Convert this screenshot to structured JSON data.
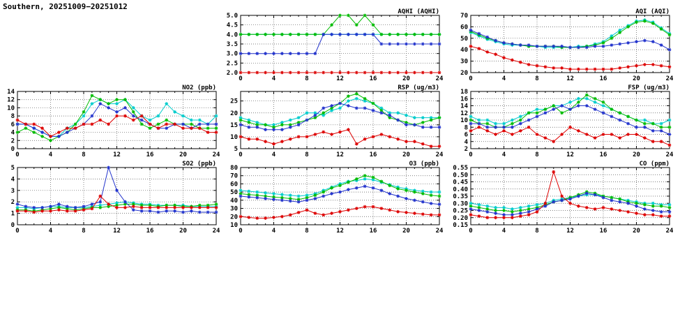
{
  "page_title": "Southern, 20251009−20251012",
  "colors": {
    "red": "#dd0000",
    "blue": "#2233cc",
    "green": "#00bb00",
    "cyan": "#00cccc"
  },
  "chart_data": [
    {
      "id": "aqhi",
      "type": "line",
      "title": "AQHI (AQHI)",
      "grid": {
        "col": 2,
        "row": 1
      },
      "xlim": [
        0,
        24
      ],
      "xticks": [
        0,
        4,
        8,
        12,
        16,
        20,
        24
      ],
      "ylim": [
        2,
        5
      ],
      "yticks": [
        2,
        2.5,
        3,
        3.5,
        4,
        4.5,
        5
      ],
      "ydecimals": 1,
      "series": [
        {
          "color": "cyan",
          "values": [
            4,
            4,
            4,
            4,
            4,
            4,
            4,
            4,
            4,
            4,
            4,
            4,
            4,
            4,
            4,
            4,
            4,
            4,
            4,
            4,
            4,
            4,
            4,
            4,
            4
          ]
        },
        {
          "color": "green",
          "values": [
            4,
            4,
            4,
            4,
            4,
            4,
            4,
            4,
            4,
            4,
            4,
            4.5,
            5,
            5,
            4.5,
            5,
            4.5,
            4,
            4,
            4,
            4,
            4,
            4,
            4,
            4
          ]
        },
        {
          "color": "blue",
          "values": [
            3,
            3,
            3,
            3,
            3,
            3,
            3,
            3,
            3,
            3,
            4,
            4,
            4,
            4,
            4,
            4,
            4,
            3.5,
            3.5,
            3.5,
            3.5,
            3.5,
            3.5,
            3.5,
            3.5
          ]
        },
        {
          "color": "red",
          "values": [
            2,
            2,
            2,
            2,
            2,
            2,
            2,
            2,
            2,
            2,
            2,
            2,
            2,
            2,
            2,
            2,
            2,
            2,
            2,
            2,
            2,
            2,
            2,
            2,
            2
          ]
        }
      ]
    },
    {
      "id": "aqi",
      "type": "line",
      "title": "AQI (AQI)",
      "grid": {
        "col": 3,
        "row": 1
      },
      "xlim": [
        0,
        24
      ],
      "xticks": [
        0,
        4,
        8,
        12,
        16,
        20,
        24
      ],
      "ylim": [
        20,
        70
      ],
      "yticks": [
        20,
        30,
        40,
        50,
        60,
        70
      ],
      "ydecimals": 0,
      "series": [
        {
          "color": "cyan",
          "values": [
            55,
            52,
            49,
            47,
            45,
            44,
            44,
            43,
            43,
            42,
            42,
            42,
            42,
            43,
            43,
            45,
            47,
            52,
            57,
            61,
            65,
            66,
            64,
            59,
            54
          ]
        },
        {
          "color": "green",
          "values": [
            56,
            53,
            50,
            48,
            46,
            45,
            44,
            43,
            43,
            43,
            43,
            42,
            42,
            42,
            43,
            44,
            46,
            50,
            55,
            60,
            64,
            65,
            63,
            58,
            53
          ]
        },
        {
          "color": "blue",
          "values": [
            57,
            54,
            51,
            48,
            46,
            45,
            44,
            44,
            43,
            43,
            43,
            43,
            42,
            42,
            42,
            43,
            43,
            44,
            45,
            46,
            47,
            48,
            47,
            44,
            40
          ]
        },
        {
          "color": "red",
          "values": [
            43,
            41,
            38,
            36,
            33,
            31,
            29,
            27,
            26,
            25,
            24,
            24,
            23,
            23,
            23,
            23,
            23,
            23,
            24,
            25,
            26,
            27,
            27,
            26,
            25
          ]
        }
      ]
    },
    {
      "id": "no2",
      "type": "line",
      "title": "NO2 (ppb)",
      "grid": {
        "col": 1,
        "row": 2
      },
      "xlim": [
        0,
        24
      ],
      "xticks": [
        0,
        4,
        8,
        12,
        16,
        20,
        24
      ],
      "ylim": [
        0,
        14
      ],
      "yticks": [
        0,
        2,
        4,
        6,
        8,
        10,
        12,
        14
      ],
      "ydecimals": 0,
      "series": [
        {
          "color": "cyan",
          "values": [
            6,
            6,
            5,
            4,
            3,
            3,
            5,
            6,
            8,
            11,
            12,
            11,
            11,
            12,
            10,
            8,
            7,
            8,
            11,
            9,
            8,
            7,
            7,
            6,
            8
          ]
        },
        {
          "color": "green",
          "values": [
            4,
            5,
            4,
            3,
            2,
            3,
            4,
            6,
            9,
            13,
            12,
            11,
            12,
            12,
            9,
            6,
            5,
            6,
            7,
            6,
            6,
            6,
            5,
            5,
            5
          ]
        },
        {
          "color": "blue",
          "values": [
            6,
            6,
            5,
            4,
            3,
            3,
            4,
            5,
            6,
            8,
            11,
            10,
            9,
            10,
            8,
            7,
            6,
            5,
            5,
            6,
            6,
            5,
            6,
            6,
            6
          ]
        },
        {
          "color": "red",
          "values": [
            7,
            6,
            6,
            5,
            3,
            4,
            5,
            5,
            6,
            6,
            7,
            6,
            8,
            8,
            7,
            8,
            6,
            5,
            6,
            6,
            5,
            5,
            5,
            4,
            4
          ]
        }
      ]
    },
    {
      "id": "rsp",
      "type": "line",
      "title": "RSP (ug/m3)",
      "grid": {
        "col": 2,
        "row": 2
      },
      "xlim": [
        0,
        24
      ],
      "xticks": [
        0,
        4,
        8,
        12,
        16,
        20,
        24
      ],
      "ylim": [
        5,
        29
      ],
      "yticks": [
        5,
        10,
        15,
        20,
        25
      ],
      "ydecimals": 0,
      "series": [
        {
          "color": "cyan",
          "values": [
            18,
            17,
            16,
            15,
            15,
            16,
            17,
            18,
            20,
            20,
            19,
            21,
            22,
            25,
            26,
            25,
            24,
            22,
            20,
            20,
            19,
            18,
            18,
            18,
            18
          ]
        },
        {
          "color": "green",
          "values": [
            17,
            16,
            15,
            15,
            14,
            15,
            15,
            16,
            17,
            18,
            20,
            22,
            24,
            27,
            28,
            26,
            24,
            21,
            18,
            17,
            16,
            15,
            16,
            17,
            18
          ]
        },
        {
          "color": "blue",
          "values": [
            15,
            14,
            14,
            13,
            13,
            13,
            14,
            15,
            17,
            19,
            22,
            23,
            24,
            23,
            22,
            22,
            21,
            20,
            19,
            17,
            15,
            15,
            14,
            14,
            14
          ]
        },
        {
          "color": "red",
          "values": [
            10,
            9,
            9,
            8,
            7,
            8,
            9,
            10,
            10,
            11,
            12,
            11,
            12,
            13,
            7,
            9,
            10,
            11,
            10,
            9,
            8,
            8,
            7,
            6,
            6
          ]
        }
      ]
    },
    {
      "id": "fsp",
      "type": "line",
      "title": "FSP (ug/m3)",
      "grid": {
        "col": 3,
        "row": 2
      },
      "xlim": [
        0,
        24
      ],
      "xticks": [
        0,
        4,
        8,
        12,
        16,
        20,
        24
      ],
      "ylim": [
        2,
        18
      ],
      "yticks": [
        2,
        4,
        6,
        8,
        10,
        12,
        14,
        16,
        18
      ],
      "ydecimals": 0,
      "series": [
        {
          "color": "cyan",
          "values": [
            11,
            10,
            10,
            9,
            9,
            10,
            11,
            12,
            13,
            13,
            14,
            14,
            15,
            16,
            16,
            15,
            14,
            13,
            12,
            11,
            10,
            10,
            9,
            9,
            10
          ]
        },
        {
          "color": "green",
          "values": [
            10,
            9,
            9,
            8,
            8,
            9,
            10,
            12,
            12,
            13,
            14,
            12,
            13,
            15,
            17,
            16,
            15,
            13,
            12,
            11,
            10,
            9,
            9,
            8,
            8
          ]
        },
        {
          "color": "blue",
          "values": [
            9,
            9,
            8,
            8,
            8,
            8,
            9,
            10,
            11,
            12,
            13,
            14,
            13,
            14,
            14,
            13,
            12,
            11,
            10,
            9,
            8,
            8,
            7,
            7,
            6
          ]
        },
        {
          "color": "red",
          "values": [
            7,
            8,
            7,
            6,
            7,
            6,
            7,
            8,
            6,
            5,
            4,
            6,
            8,
            7,
            6,
            5,
            6,
            6,
            5,
            6,
            6,
            5,
            4,
            4,
            3
          ]
        }
      ]
    },
    {
      "id": "so2",
      "type": "line",
      "title": "SO2 (ppb)",
      "grid": {
        "col": 1,
        "row": 3
      },
      "xlim": [
        0,
        24
      ],
      "xticks": [
        0,
        4,
        8,
        12,
        16,
        20,
        24
      ],
      "ylim": [
        0,
        5
      ],
      "yticks": [
        0,
        1,
        2,
        3,
        4,
        5
      ],
      "ydecimals": 0,
      "series": [
        {
          "color": "cyan",
          "values": [
            1.5,
            1.5,
            1.4,
            1.5,
            1.6,
            1.6,
            1.5,
            1.5,
            1.5,
            1.6,
            1.7,
            1.8,
            1.9,
            2,
            1.9,
            1.8,
            1.8,
            1.7,
            1.7,
            1.7,
            1.7,
            1.6,
            1.6,
            1.6,
            1.6
          ]
        },
        {
          "color": "green",
          "values": [
            1.3,
            1.3,
            1.2,
            1.3,
            1.4,
            1.5,
            1.4,
            1.3,
            1.4,
            1.5,
            1.5,
            1.6,
            1.7,
            1.8,
            1.8,
            1.7,
            1.7,
            1.6,
            1.7,
            1.7,
            1.6,
            1.6,
            1.7,
            1.7,
            1.8
          ]
        },
        {
          "color": "blue",
          "values": [
            1.8,
            1.6,
            1.5,
            1.5,
            1.6,
            1.8,
            1.6,
            1.5,
            1.6,
            1.8,
            2,
            5,
            3,
            2,
            1.3,
            1.2,
            1.2,
            1.1,
            1.2,
            1.2,
            1.1,
            1.2,
            1.1,
            1.1,
            1.1
          ]
        },
        {
          "color": "red",
          "values": [
            1.2,
            1.2,
            1.1,
            1.2,
            1.2,
            1.3,
            1.2,
            1.2,
            1.3,
            1.4,
            2.5,
            1.8,
            1.5,
            1.5,
            1.6,
            1.5,
            1.5,
            1.5,
            1.5,
            1.5,
            1.5,
            1.5,
            1.5,
            1.5,
            1.5
          ]
        }
      ]
    },
    {
      "id": "o3",
      "type": "line",
      "title": "O3 (ppb)",
      "grid": {
        "col": 2,
        "row": 3
      },
      "xlim": [
        0,
        24
      ],
      "xticks": [
        0,
        4,
        8,
        12,
        16,
        20,
        24
      ],
      "ylim": [
        10,
        80
      ],
      "yticks": [
        10,
        20,
        30,
        40,
        50,
        60,
        70,
        80
      ],
      "ydecimals": 0,
      "series": [
        {
          "color": "cyan",
          "values": [
            52,
            51,
            50,
            49,
            48,
            47,
            46,
            45,
            46,
            48,
            52,
            56,
            60,
            63,
            64,
            66,
            65,
            62,
            59,
            56,
            54,
            52,
            51,
            50,
            50
          ]
        },
        {
          "color": "green",
          "values": [
            48,
            47,
            46,
            45,
            44,
            43,
            42,
            41,
            43,
            46,
            50,
            55,
            58,
            62,
            66,
            70,
            68,
            63,
            58,
            54,
            52,
            50,
            48,
            46,
            45
          ]
        },
        {
          "color": "blue",
          "values": [
            45,
            44,
            43,
            42,
            41,
            40,
            39,
            38,
            40,
            42,
            45,
            48,
            50,
            53,
            55,
            57,
            55,
            52,
            48,
            45,
            42,
            40,
            38,
            36,
            35
          ]
        },
        {
          "color": "red",
          "values": [
            20,
            19,
            18,
            18,
            19,
            20,
            22,
            25,
            28,
            24,
            22,
            24,
            26,
            28,
            30,
            32,
            32,
            30,
            28,
            26,
            25,
            24,
            23,
            22,
            22
          ]
        }
      ]
    },
    {
      "id": "co",
      "type": "line",
      "title": "CO (ppm)",
      "grid": {
        "col": 3,
        "row": 3
      },
      "xlim": [
        0,
        24
      ],
      "xticks": [
        0,
        4,
        8,
        12,
        16,
        20,
        24
      ],
      "ylim": [
        0.15,
        0.55
      ],
      "yticks": [
        0.15,
        0.2,
        0.25,
        0.3,
        0.35,
        0.4,
        0.45,
        0.5,
        0.55
      ],
      "ydecimals": 2,
      "series": [
        {
          "color": "cyan",
          "values": [
            0.3,
            0.29,
            0.28,
            0.27,
            0.27,
            0.26,
            0.27,
            0.28,
            0.29,
            0.3,
            0.32,
            0.33,
            0.34,
            0.35,
            0.36,
            0.36,
            0.35,
            0.34,
            0.33,
            0.32,
            0.31,
            0.3,
            0.3,
            0.29,
            0.29
          ]
        },
        {
          "color": "green",
          "values": [
            0.28,
            0.27,
            0.26,
            0.25,
            0.25,
            0.24,
            0.25,
            0.26,
            0.27,
            0.29,
            0.31,
            0.32,
            0.34,
            0.36,
            0.38,
            0.37,
            0.35,
            0.34,
            0.33,
            0.31,
            0.3,
            0.29,
            0.28,
            0.28,
            0.27
          ]
        },
        {
          "color": "blue",
          "values": [
            0.26,
            0.25,
            0.24,
            0.23,
            0.22,
            0.22,
            0.23,
            0.24,
            0.26,
            0.28,
            0.31,
            0.32,
            0.33,
            0.35,
            0.37,
            0.36,
            0.34,
            0.32,
            0.31,
            0.3,
            0.28,
            0.26,
            0.25,
            0.24,
            0.24
          ]
        },
        {
          "color": "red",
          "values": [
            0.22,
            0.21,
            0.2,
            0.2,
            0.2,
            0.2,
            0.21,
            0.22,
            0.24,
            0.3,
            0.52,
            0.35,
            0.3,
            0.28,
            0.27,
            0.26,
            0.27,
            0.26,
            0.25,
            0.24,
            0.23,
            0.22,
            0.22,
            0.21,
            0.21
          ]
        }
      ]
    }
  ]
}
